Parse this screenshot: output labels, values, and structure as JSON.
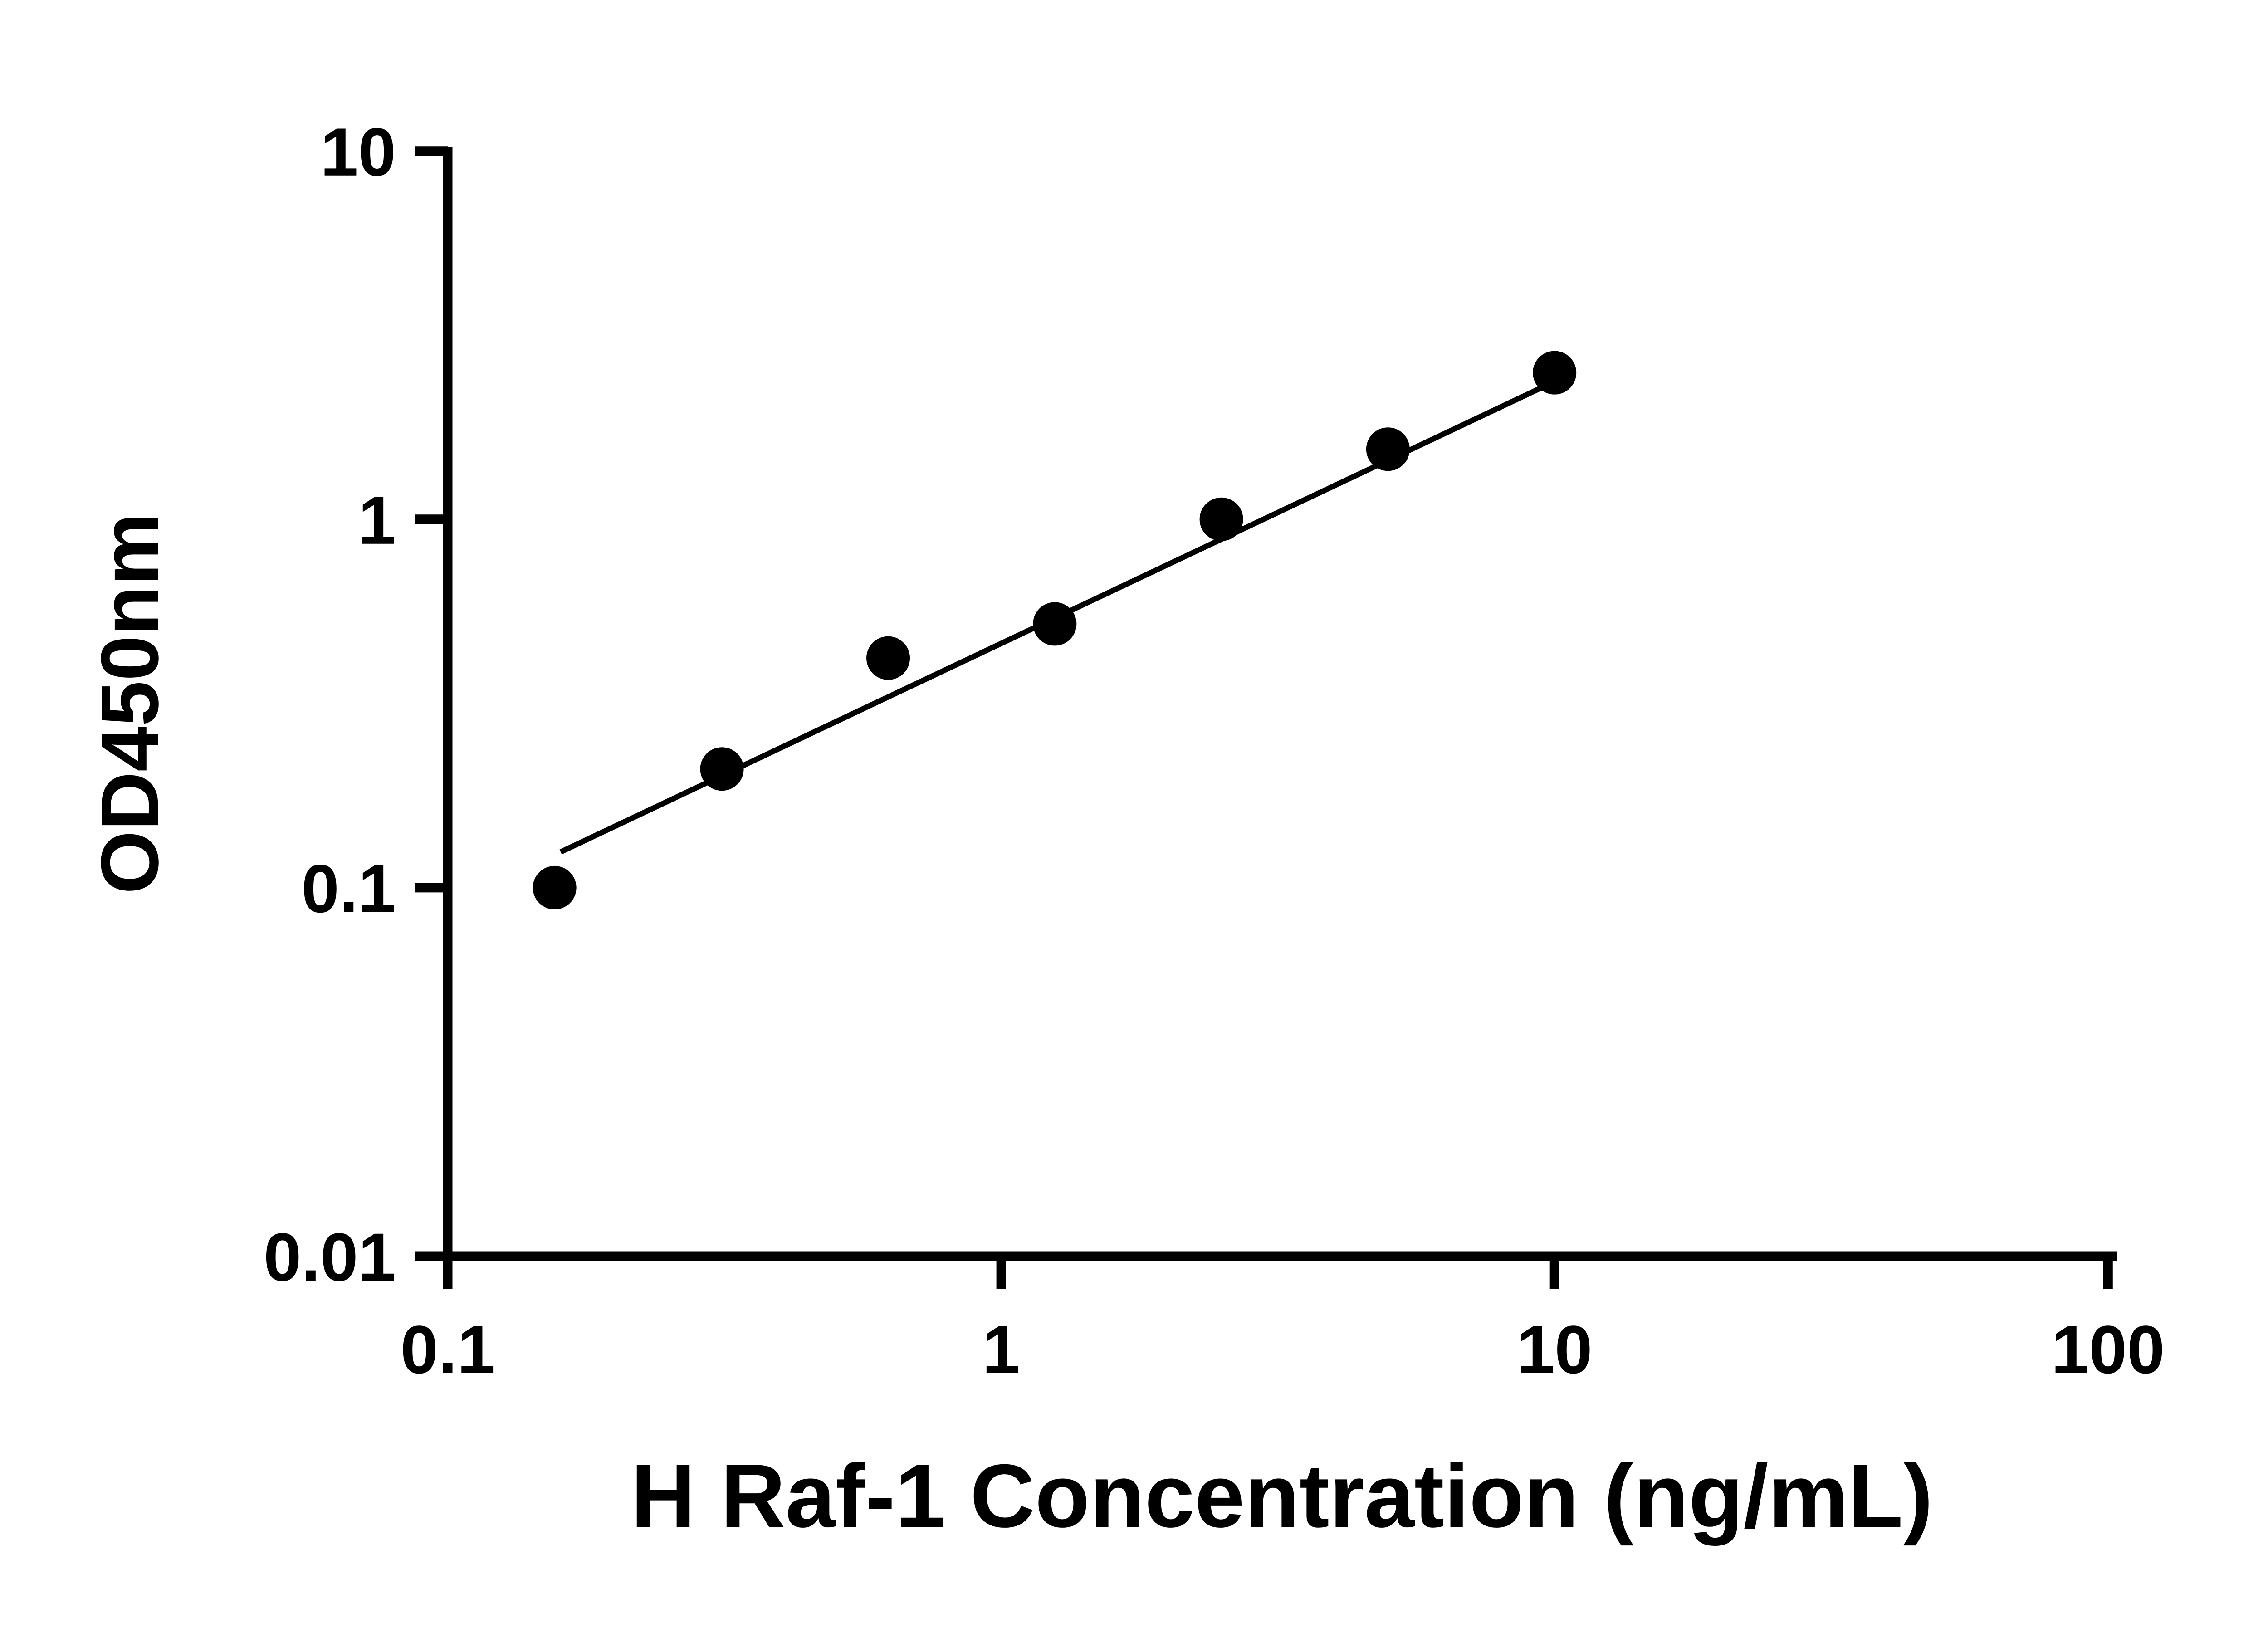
{
  "chart_data": {
    "type": "scatter",
    "title": "",
    "xlabel": "H Raf-1 Concentration (ng/mL)",
    "ylabel": "OD450nm",
    "xscale": "log",
    "yscale": "log",
    "xlim": [
      0.1,
      100
    ],
    "ylim": [
      0.01,
      10
    ],
    "grid": false,
    "legend": false,
    "axis_color": "#000000",
    "marker_color": "#000000",
    "line_color": "#000000",
    "x_ticks": [
      {
        "value": 0.1,
        "label": "0.1"
      },
      {
        "value": 1,
        "label": "1"
      },
      {
        "value": 10,
        "label": "10"
      },
      {
        "value": 100,
        "label": "100"
      }
    ],
    "y_ticks": [
      {
        "value": 0.01,
        "label": "0.01"
      },
      {
        "value": 0.1,
        "label": "0.1"
      },
      {
        "value": 1,
        "label": "1"
      },
      {
        "value": 10,
        "label": "10"
      }
    ],
    "points": [
      {
        "x": 0.156,
        "y": 0.1
      },
      {
        "x": 0.313,
        "y": 0.21
      },
      {
        "x": 0.625,
        "y": 0.42
      },
      {
        "x": 1.25,
        "y": 0.52
      },
      {
        "x": 2.5,
        "y": 1.0
      },
      {
        "x": 5,
        "y": 1.55
      },
      {
        "x": 10,
        "y": 2.5
      }
    ],
    "trend_line": {
      "x1": 0.16,
      "y1": 0.125,
      "x2": 10.2,
      "y2": 2.4
    }
  }
}
